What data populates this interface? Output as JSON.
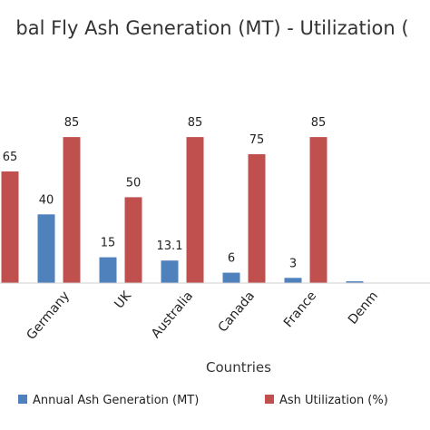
{
  "chart_data": {
    "type": "bar",
    "title": "bal Fly Ash Generation (MT) - Utilization (",
    "xlabel": "Countries",
    "categories": [
      "",
      "Germany",
      "UK",
      "Australia",
      "Canada",
      "France",
      "Denm"
    ],
    "series": [
      {
        "name": "Annual Ash Generation (MT)",
        "color": "#4f81bd",
        "values": [
          null,
          40,
          15,
          13.1,
          6,
          3,
          1
        ],
        "labels": [
          null,
          "40",
          "15",
          "13.1",
          "6",
          "3",
          null
        ]
      },
      {
        "name": "Ash Utilization (%)",
        "color": "#c0504d",
        "values": [
          65,
          85,
          50,
          85,
          75,
          85,
          null
        ],
        "labels": [
          "65",
          "85",
          "50",
          "85",
          "75",
          "85",
          null
        ]
      }
    ],
    "ylim": [
      0,
      112
    ],
    "grid": false,
    "legend_position": "bottom"
  }
}
